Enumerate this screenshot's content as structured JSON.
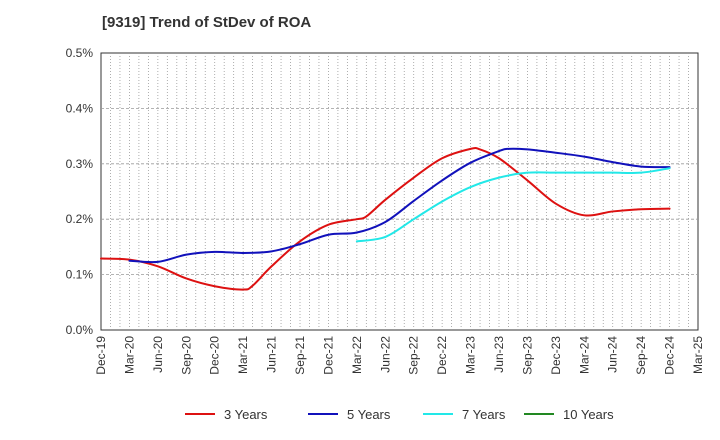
{
  "chart_data": {
    "type": "line",
    "title": "[9319]  Trend of StDev of ROA",
    "xlabel": "",
    "ylabel": "",
    "x_ticks": [
      "Dec-19",
      "Mar-20",
      "Jun-20",
      "Sep-20",
      "Dec-20",
      "Mar-21",
      "Jun-21",
      "Sep-21",
      "Dec-21",
      "Mar-22",
      "Jun-22",
      "Sep-22",
      "Dec-22",
      "Mar-23",
      "Jun-23",
      "Sep-23",
      "Dec-23",
      "Mar-24",
      "Jun-24",
      "Sep-24",
      "Dec-24",
      "Mar-25"
    ],
    "y_ticks": [
      "0.0%",
      "0.1%",
      "0.2%",
      "0.3%",
      "0.4%",
      "0.5%"
    ],
    "ylim": [
      0,
      0.5
    ],
    "grid": true,
    "legend_position": "bottom",
    "series": [
      {
        "name": "3 Years",
        "color": "#dd1111",
        "x": [
          "Dec-19",
          "Mar-20",
          "Jun-20",
          "Sep-20",
          "Dec-20",
          "Mar-21",
          "Apr-21",
          "Jun-21",
          "Sep-21",
          "Dec-21",
          "Mar-22",
          "Apr-22",
          "Jun-22",
          "Sep-22",
          "Dec-22",
          "Mar-23",
          "Apr-23",
          "Jun-23",
          "Sep-23",
          "Dec-23",
          "Mar-24",
          "Jun-24",
          "Sep-24",
          "Dec-24"
        ],
        "values": [
          0.129,
          0.127,
          0.115,
          0.093,
          0.079,
          0.073,
          0.08,
          0.115,
          0.16,
          0.19,
          0.2,
          0.205,
          0.235,
          0.275,
          0.31,
          0.327,
          0.326,
          0.31,
          0.27,
          0.228,
          0.207,
          0.214,
          0.218,
          0.219
        ]
      },
      {
        "name": "5 Years",
        "color": "#1111bb",
        "x": [
          "Mar-20",
          "Jun-20",
          "Sep-20",
          "Dec-20",
          "Mar-21",
          "Jun-21",
          "Sep-21",
          "Dec-21",
          "Mar-22",
          "Jun-22",
          "Sep-22",
          "Dec-22",
          "Mar-23",
          "Jun-23",
          "Jul-23",
          "Sep-23",
          "Dec-23",
          "Mar-24",
          "Jun-24",
          "Sep-24",
          "Dec-24"
        ],
        "values": [
          0.125,
          0.123,
          0.136,
          0.141,
          0.139,
          0.142,
          0.155,
          0.172,
          0.176,
          0.195,
          0.233,
          0.27,
          0.302,
          0.323,
          0.327,
          0.326,
          0.32,
          0.313,
          0.303,
          0.295,
          0.294
        ]
      },
      {
        "name": "7 Years",
        "color": "#22e8e8",
        "x": [
          "Mar-22",
          "Jun-22",
          "Sep-22",
          "Dec-22",
          "Mar-23",
          "Jun-23",
          "Sep-23",
          "Dec-23",
          "Mar-24",
          "Jun-24",
          "Sep-24",
          "Dec-24"
        ],
        "values": [
          0.16,
          0.168,
          0.2,
          0.232,
          0.258,
          0.275,
          0.284,
          0.284,
          0.284,
          0.284,
          0.284,
          0.292
        ]
      },
      {
        "name": "10 Years",
        "color": "#228822",
        "x": [],
        "values": []
      }
    ]
  }
}
